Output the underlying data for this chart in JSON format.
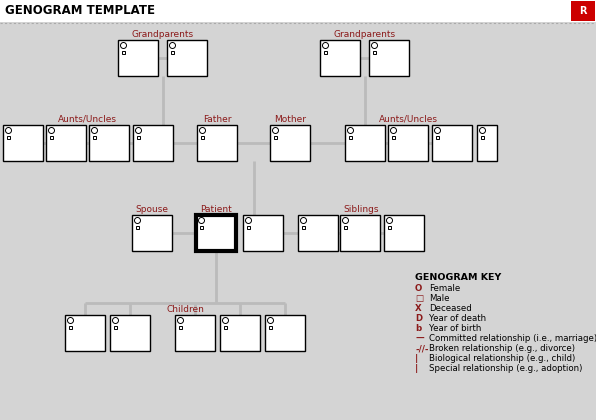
{
  "title": "GENOGRAM TEMPLATE",
  "bg_color": "#d4d4d4",
  "title_bar_color": "#ffffff",
  "box_facecolor": "white",
  "box_edgecolor": "black",
  "label_color": "#8B1A1A",
  "key_color": "#8B1A1A",
  "connector_color": "#bbbbbb",
  "title_fontsize": 8.5,
  "label_fontsize": 6.5,
  "key_fontsize": 6.2,
  "grandparents_left_label": "Grandparents",
  "grandparents_right_label": "Grandparents",
  "aunts_uncles_left_label": "Aunts/Uncles",
  "father_label": "Father",
  "mother_label": "Mother",
  "aunts_uncles_right_label": "Aunts/Uncles",
  "spouse_label": "Spouse",
  "patient_label": "Patient",
  "siblings_label": "Siblings",
  "children_label": "Children",
  "key_title": "GENOGRAM KEY",
  "key_lines": [
    [
      "O",
      "Female"
    ],
    [
      "□",
      "Male"
    ],
    [
      "X",
      "Deceased"
    ],
    [
      "D",
      "Year of death"
    ],
    [
      "b",
      "Year of birth"
    ],
    [
      "—",
      "Committed relationship (i.e., marriage)"
    ],
    [
      "-//-",
      "Broken relationship (e.g., divorce)"
    ],
    [
      "|",
      "Biological relationship (e.g., child)"
    ],
    [
      "|",
      "Special relationship (e.g., adoption)"
    ]
  ]
}
